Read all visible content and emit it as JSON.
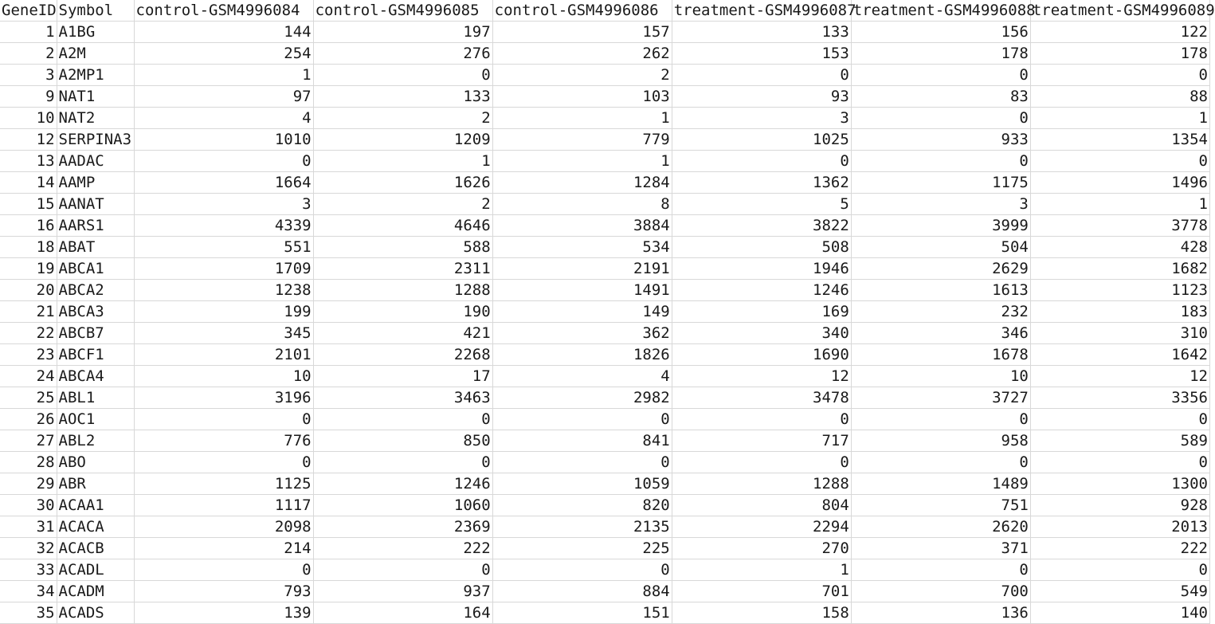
{
  "table": {
    "headers": [
      "GeneID",
      "Symbol",
      "control-GSM4996084",
      "control-GSM4996085",
      "control-GSM4996086",
      "treatment-GSM4996087",
      "treatment-GSM4996088",
      "treatment-GSM4996089"
    ],
    "rows": [
      [
        "1",
        "A1BG",
        "144",
        "197",
        "157",
        "133",
        "156",
        "122"
      ],
      [
        "2",
        "A2M",
        "254",
        "276",
        "262",
        "153",
        "178",
        "178"
      ],
      [
        "3",
        "A2MP1",
        "1",
        "0",
        "2",
        "0",
        "0",
        "0"
      ],
      [
        "9",
        "NAT1",
        "97",
        "133",
        "103",
        "93",
        "83",
        "88"
      ],
      [
        "10",
        "NAT2",
        "4",
        "2",
        "1",
        "3",
        "0",
        "1"
      ],
      [
        "12",
        "SERPINA3",
        "1010",
        "1209",
        "779",
        "1025",
        "933",
        "1354"
      ],
      [
        "13",
        "AADAC",
        "0",
        "1",
        "1",
        "0",
        "0",
        "0"
      ],
      [
        "14",
        "AAMP",
        "1664",
        "1626",
        "1284",
        "1362",
        "1175",
        "1496"
      ],
      [
        "15",
        "AANAT",
        "3",
        "2",
        "8",
        "5",
        "3",
        "1"
      ],
      [
        "16",
        "AARS1",
        "4339",
        "4646",
        "3884",
        "3822",
        "3999",
        "3778"
      ],
      [
        "18",
        "ABAT",
        "551",
        "588",
        "534",
        "508",
        "504",
        "428"
      ],
      [
        "19",
        "ABCA1",
        "1709",
        "2311",
        "2191",
        "1946",
        "2629",
        "1682"
      ],
      [
        "20",
        "ABCA2",
        "1238",
        "1288",
        "1491",
        "1246",
        "1613",
        "1123"
      ],
      [
        "21",
        "ABCA3",
        "199",
        "190",
        "149",
        "169",
        "232",
        "183"
      ],
      [
        "22",
        "ABCB7",
        "345",
        "421",
        "362",
        "340",
        "346",
        "310"
      ],
      [
        "23",
        "ABCF1",
        "2101",
        "2268",
        "1826",
        "1690",
        "1678",
        "1642"
      ],
      [
        "24",
        "ABCA4",
        "10",
        "17",
        "4",
        "12",
        "10",
        "12"
      ],
      [
        "25",
        "ABL1",
        "3196",
        "3463",
        "2982",
        "3478",
        "3727",
        "3356"
      ],
      [
        "26",
        "AOC1",
        "0",
        "0",
        "0",
        "0",
        "0",
        "0"
      ],
      [
        "27",
        "ABL2",
        "776",
        "850",
        "841",
        "717",
        "958",
        "589"
      ],
      [
        "28",
        "ABO",
        "0",
        "0",
        "0",
        "0",
        "0",
        "0"
      ],
      [
        "29",
        "ABR",
        "1125",
        "1246",
        "1059",
        "1288",
        "1489",
        "1300"
      ],
      [
        "30",
        "ACAA1",
        "1117",
        "1060",
        "820",
        "804",
        "751",
        "928"
      ],
      [
        "31",
        "ACACA",
        "2098",
        "2369",
        "2135",
        "2294",
        "2620",
        "2013"
      ],
      [
        "32",
        "ACACB",
        "214",
        "222",
        "225",
        "270",
        "371",
        "222"
      ],
      [
        "33",
        "ACADL",
        "0",
        "0",
        "0",
        "1",
        "0",
        "0"
      ],
      [
        "34",
        "ACADM",
        "793",
        "937",
        "884",
        "701",
        "700",
        "549"
      ],
      [
        "35",
        "ACADS",
        "139",
        "164",
        "151",
        "158",
        "136",
        "140"
      ]
    ]
  }
}
